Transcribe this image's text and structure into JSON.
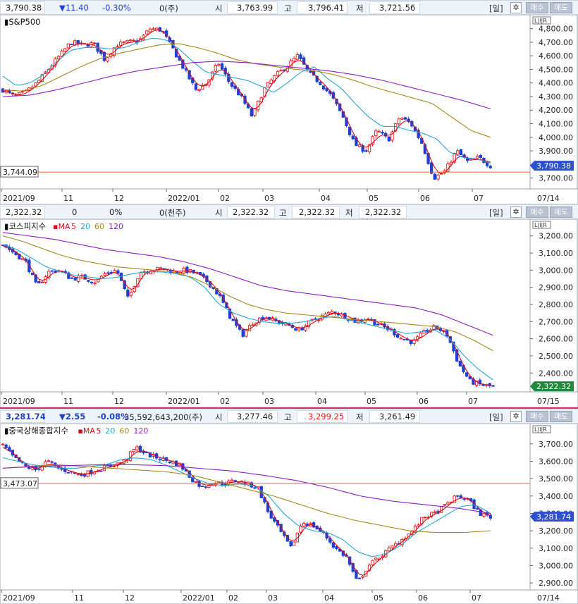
{
  "panels": [
    {
      "header": {
        "price": "3,790.38",
        "change": "▼11.40",
        "pct": "-0.30%",
        "volume": "0(주)",
        "open_label": "시",
        "open": "3,763.99",
        "high_label": "고",
        "high": "3,796.41",
        "low_label": "저",
        "low": "3,721.56",
        "period": "[일]",
        "buy": "매수",
        "sell": "매도"
      },
      "chart": {
        "legend": "S&P500",
        "ma": null,
        "lir": "L|I|R",
        "last_label": "3,790.38",
        "hline_label": "3,744.09",
        "end_date": "07/14"
      }
    },
    {
      "header": {
        "price": "2,322.32",
        "change": "0",
        "pct": "0%",
        "volume": "0(천주)",
        "open_label": "시",
        "open": "2,322.32",
        "high_label": "고",
        "high": "2,322.32",
        "low_label": "저",
        "low": "2,322.32",
        "period": "[일]",
        "buy": "매수",
        "sell": "매도"
      },
      "chart": {
        "legend": "코스피지수",
        "ma": [
          "MA",
          "5",
          "20",
          "60",
          "120"
        ],
        "lir": "L|I|R",
        "last_label": "2,322.32",
        "hline_label": "",
        "end_date": "07/15"
      }
    },
    {
      "header": {
        "price": "3,281.74",
        "change": "▼2.55",
        "pct": "-0.08%",
        "volume": "35,592,643,200(주)",
        "open_label": "시",
        "open": "3,277.46",
        "high_label": "고",
        "high": "3,299.25",
        "low_label": "저",
        "low": "3,261.49",
        "period": "[일]",
        "buy": "매수",
        "sell": "매도"
      },
      "chart": {
        "legend": "중국상해종합지수",
        "ma": [
          "MA",
          "5",
          "20",
          "60",
          "120"
        ],
        "lir": "L|I|R",
        "last_label": "3,281.74",
        "hline_label": "3,473.07",
        "end_date": "07/14"
      }
    }
  ],
  "colors": {
    "up": "#e8141a",
    "down": "#1f3fd6",
    "ma5": "#d0101a",
    "ma20": "#25a6d6",
    "ma60": "#a48a1c",
    "ma120": "#8a1ec8",
    "hline": "#e5662a"
  },
  "chart_data": [
    {
      "type": "candlestick",
      "title": "S&P500",
      "x_ticks": [
        "2021/09",
        "11",
        "12",
        "2022/01",
        "02",
        "03",
        "04",
        "05",
        "06",
        "07"
      ],
      "y_ticks": [
        3700,
        3800,
        3900,
        4000,
        4100,
        4200,
        4300,
        4400,
        4500,
        4600,
        4700,
        4800
      ],
      "y_tick_labels": [
        "3,700.00",
        "3,800.00",
        "3,900.00",
        "4,000.00",
        "4,100.00",
        "4,200.00",
        "4,300.00",
        "4,400.00",
        "4,500.00",
        "4,600.00",
        "4,700.00",
        "4,800.00"
      ],
      "ylim": [
        3620,
        4850
      ],
      "close_path": [
        4350,
        4300,
        4330,
        4400,
        4500,
        4600,
        4700,
        4680,
        4690,
        4570,
        4680,
        4700,
        4710,
        4800,
        4790,
        4650,
        4500,
        4350,
        4400,
        4550,
        4400,
        4300,
        4150,
        4350,
        4450,
        4520,
        4600,
        4470,
        4400,
        4300,
        4150,
        3950,
        3900,
        4050,
        3980,
        4150,
        4100,
        3950,
        3700,
        3750,
        3900,
        3820,
        3850,
        3790
      ],
      "ma20_path": [
        4450,
        4380,
        4400,
        4460,
        4560,
        4640,
        4660,
        4660,
        4650,
        4660,
        4700,
        4730,
        4720,
        4650,
        4560,
        4480,
        4460,
        4440,
        4420,
        4380,
        4330,
        4400,
        4480,
        4520,
        4430,
        4360,
        4250,
        4150,
        4080,
        4080,
        4050,
        4030,
        3990,
        3890,
        3850,
        3840,
        3810
      ],
      "ma60_path": [
        4350,
        4340,
        4380,
        4450,
        4520,
        4580,
        4620,
        4650,
        4680,
        4690,
        4660,
        4620,
        4570,
        4540,
        4520,
        4500,
        4490,
        4460,
        4420,
        4370,
        4330,
        4290,
        4250,
        4150,
        4050,
        4000
      ],
      "ma120_path": [
        4300,
        4310,
        4350,
        4400,
        4450,
        4490,
        4520,
        4550,
        4560,
        4550,
        4530,
        4510,
        4490,
        4460,
        4420,
        4370,
        4320,
        4270,
        4210
      ],
      "hline": 3744.09,
      "last": 3790.38
    },
    {
      "type": "candlestick",
      "title": "코스피지수",
      "x_ticks": [
        "2021/09",
        "11",
        "12",
        "2022/01",
        "02",
        "03",
        "04",
        "05",
        "06",
        "07"
      ],
      "y_ticks": [
        2400,
        2500,
        2600,
        2700,
        2800,
        2900,
        3000,
        3100,
        3200
      ],
      "y_tick_labels": [
        "2,400.00",
        "2,500.00",
        "2,600.00",
        "2,700.00",
        "2,800.00",
        "2,900.00",
        "3,000.00",
        "3,100.00",
        "3,200.00"
      ],
      "ylim": [
        2290,
        3240
      ],
      "close_path": [
        3150,
        3100,
        3050,
        2900,
        2990,
        3000,
        2950,
        2960,
        2930,
        2980,
        3000,
        2830,
        2990,
        3000,
        3010,
        2990,
        3000,
        2980,
        2930,
        2850,
        2720,
        2620,
        2700,
        2730,
        2700,
        2680,
        2650,
        2700,
        2730,
        2760,
        2730,
        2700,
        2720,
        2680,
        2650,
        2600,
        2580,
        2640,
        2670,
        2620,
        2450,
        2350,
        2330,
        2320
      ],
      "ma20_path": [
        3150,
        3120,
        3070,
        3020,
        2990,
        2970,
        2960,
        2950,
        2960,
        2980,
        2990,
        2990,
        2980,
        2960,
        2900,
        2800,
        2750,
        2720,
        2700,
        2690,
        2690,
        2700,
        2720,
        2730,
        2710,
        2690,
        2670,
        2650,
        2630,
        2640,
        2650,
        2600,
        2500,
        2420,
        2360
      ],
      "ma60_path": [
        3200,
        3170,
        3130,
        3090,
        3060,
        3040,
        3020,
        3010,
        3000,
        2990,
        2960,
        2910,
        2850,
        2800,
        2770,
        2750,
        2740,
        2730,
        2720,
        2710,
        2700,
        2690,
        2680,
        2670,
        2640,
        2590,
        2530
      ],
      "ma120_path": [
        3220,
        3200,
        3180,
        3150,
        3120,
        3100,
        3080,
        3050,
        3010,
        2960,
        2910,
        2880,
        2860,
        2840,
        2820,
        2800,
        2780,
        2740,
        2680,
        2620
      ],
      "last": 2322.32
    },
    {
      "type": "candlestick",
      "title": "중국상해종합지수",
      "x_ticks": [
        "2021/09",
        "11",
        "12",
        "2022/01",
        "02",
        "03",
        "04",
        "05",
        "06",
        "07"
      ],
      "y_ticks": [
        2900,
        3000,
        3100,
        3200,
        3300,
        3400,
        3500,
        3600,
        3700
      ],
      "y_tick_labels": [
        "2,900.00",
        "3,000.00",
        "3,100.00",
        "3,200.00",
        "3,300.00",
        "3,400.00",
        "3,500.00",
        "3,600.00",
        "3,700.00"
      ],
      "ylim": [
        2860,
        3760
      ],
      "close_path": [
        3690,
        3620,
        3570,
        3550,
        3600,
        3560,
        3540,
        3520,
        3540,
        3560,
        3580,
        3600,
        3680,
        3640,
        3620,
        3600,
        3580,
        3500,
        3450,
        3480,
        3470,
        3490,
        3470,
        3450,
        3300,
        3200,
        3100,
        3250,
        3230,
        3180,
        3100,
        3050,
        2900,
        3000,
        3050,
        3100,
        3150,
        3200,
        3280,
        3300,
        3350,
        3400,
        3380,
        3300,
        3280
      ],
      "ma20_path": [
        3620,
        3600,
        3580,
        3570,
        3560,
        3560,
        3570,
        3580,
        3610,
        3620,
        3610,
        3580,
        3540,
        3500,
        3470,
        3460,
        3470,
        3460,
        3400,
        3300,
        3230,
        3200,
        3190,
        3150,
        3080,
        3050,
        3070,
        3120,
        3190,
        3240,
        3290,
        3340,
        3350,
        3300
      ],
      "ma60_path": [
        3560,
        3570,
        3580,
        3570,
        3560,
        3550,
        3540,
        3520,
        3480,
        3440,
        3400,
        3350,
        3300,
        3260,
        3230,
        3200,
        3190,
        3190,
        3200
      ],
      "ma120_path": [
        3560,
        3570,
        3575,
        3580,
        3580,
        3575,
        3560,
        3545,
        3520,
        3490,
        3450,
        3400,
        3370,
        3350,
        3330,
        3300
      ],
      "hline": 3473.07,
      "last": 3281.74
    }
  ]
}
